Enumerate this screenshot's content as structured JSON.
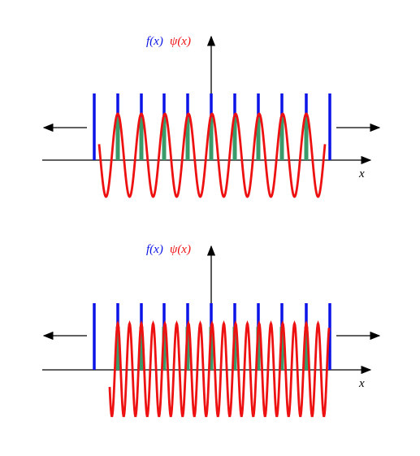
{
  "panels": [
    {
      "f_label": "f(x)",
      "psi_label": "ψ(x)",
      "x_label": "x"
    },
    {
      "f_label": "f(x)",
      "psi_label": "ψ(x)",
      "x_label": "x"
    }
  ]
}
